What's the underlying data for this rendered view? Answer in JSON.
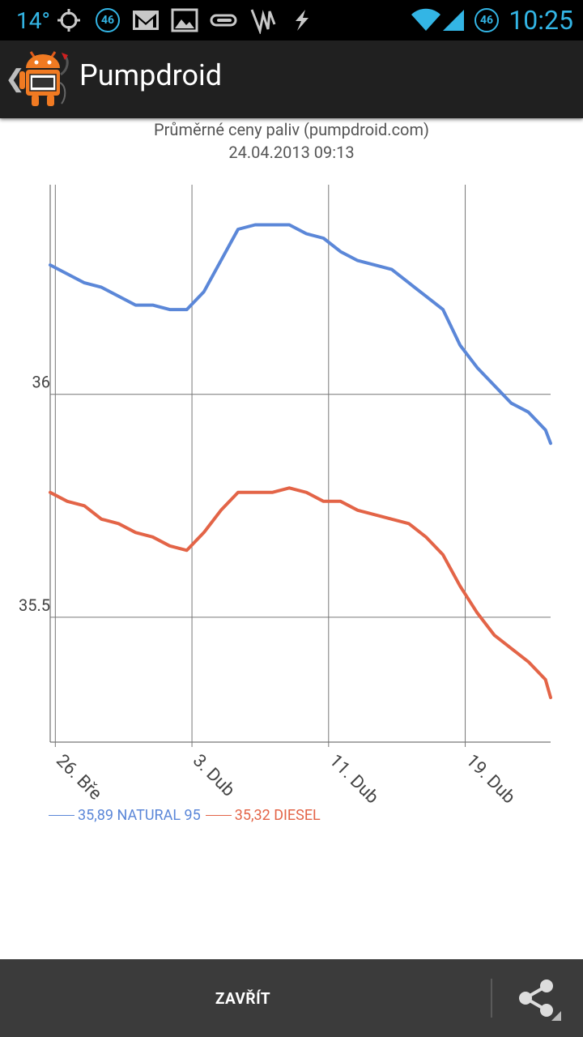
{
  "status_bar": {
    "temperature": "14°",
    "network_badge": "46",
    "clock": "10:25",
    "icons": [
      "gps-icon",
      "gmail-icon",
      "gallery-icon",
      "clip-icon",
      "feather-icon",
      "bolt-icon",
      "wifi-icon",
      "signal-icon"
    ]
  },
  "action_bar": {
    "title": "Pumpdroid",
    "back_icon": "chevron-left-icon",
    "app_icon": "pumpdroid-logo-icon"
  },
  "chart_data": {
    "type": "line",
    "title": "Průměrné ceny paliv (pumpdroid.com)",
    "subtitle": "24.04.2013 09:13",
    "xlabel": "",
    "ylabel": "",
    "x_ticks": [
      {
        "label": "26. Bře",
        "day": 0
      },
      {
        "label": "3. Dub",
        "day": 8
      },
      {
        "label": "11. Dub",
        "day": 16
      },
      {
        "label": "19. Dub",
        "day": 24
      }
    ],
    "y_ticks": [
      {
        "label": "35.5",
        "value": 35.5
      },
      {
        "label": "36",
        "value": 36.0
      }
    ],
    "ylim": [
      35.22,
      36.47
    ],
    "xlim": [
      -0.3,
      29
    ],
    "grid": true,
    "legend_position": "bottom-left",
    "series": [
      {
        "name": "NATURAL 95",
        "legend_label": "35,89 NATURAL 95",
        "color": "#5b87d8",
        "points": [
          [
            -0.3,
            36.29
          ],
          [
            1.7,
            36.25
          ],
          [
            2.7,
            36.24
          ],
          [
            4.7,
            36.2
          ],
          [
            5.7,
            36.2
          ],
          [
            6.7,
            36.19
          ],
          [
            7.7,
            36.19
          ],
          [
            8.7,
            36.23
          ],
          [
            9.7,
            36.3
          ],
          [
            10.7,
            36.37
          ],
          [
            11.7,
            36.38
          ],
          [
            12.7,
            36.38
          ],
          [
            13.7,
            36.38
          ],
          [
            14.7,
            36.36
          ],
          [
            15.7,
            36.35
          ],
          [
            16.7,
            36.32
          ],
          [
            17.7,
            36.3
          ],
          [
            18.7,
            36.29
          ],
          [
            19.7,
            36.28
          ],
          [
            20.7,
            36.25
          ],
          [
            21.7,
            36.22
          ],
          [
            22.7,
            36.19
          ],
          [
            23.7,
            36.11
          ],
          [
            24.7,
            36.06
          ],
          [
            25.7,
            36.02
          ],
          [
            26.7,
            35.98
          ],
          [
            27.7,
            35.96
          ],
          [
            28.7,
            35.92
          ],
          [
            29,
            35.89
          ]
        ]
      },
      {
        "name": "DIESEL",
        "legend_label": "35,32 DIESEL",
        "color": "#e36447",
        "points": [
          [
            -0.3,
            35.78
          ],
          [
            0.7,
            35.76
          ],
          [
            1.7,
            35.75
          ],
          [
            2.7,
            35.72
          ],
          [
            3.7,
            35.71
          ],
          [
            4.7,
            35.69
          ],
          [
            5.7,
            35.68
          ],
          [
            6.7,
            35.66
          ],
          [
            7.7,
            35.65
          ],
          [
            8.7,
            35.69
          ],
          [
            9.7,
            35.74
          ],
          [
            10.7,
            35.78
          ],
          [
            11.7,
            35.78
          ],
          [
            12.7,
            35.78
          ],
          [
            13.7,
            35.79
          ],
          [
            14.7,
            35.78
          ],
          [
            15.7,
            35.76
          ],
          [
            16.7,
            35.76
          ],
          [
            17.7,
            35.74
          ],
          [
            18.7,
            35.73
          ],
          [
            19.7,
            35.72
          ],
          [
            20.7,
            35.71
          ],
          [
            21.7,
            35.68
          ],
          [
            22.7,
            35.64
          ],
          [
            23.7,
            35.57
          ],
          [
            24.7,
            35.51
          ],
          [
            25.7,
            35.46
          ],
          [
            26.7,
            35.43
          ],
          [
            27.7,
            35.4
          ],
          [
            28.7,
            35.36
          ],
          [
            29,
            35.32
          ]
        ]
      }
    ]
  },
  "bottom_bar": {
    "close_label": "ZAVŘÍT",
    "share_icon": "share-icon"
  }
}
